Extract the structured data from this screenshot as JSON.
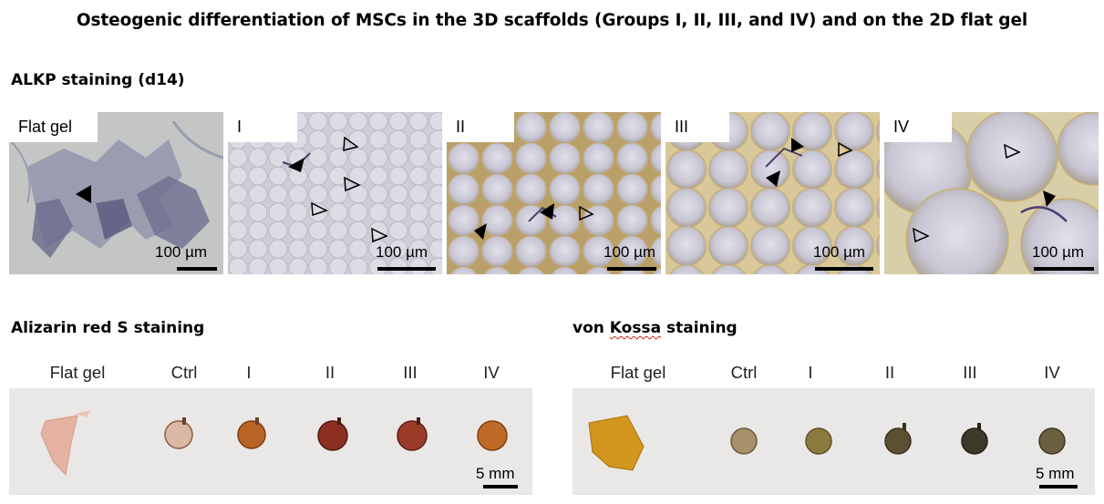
{
  "title": "Osteogenic differentiation of MSCs in the 3D scaffolds (Groups I, II, III, and IV) and on the 2D flat gel",
  "alkp": {
    "label": "ALKP staining (d14)",
    "panels": [
      {
        "tag": "Flat gel",
        "scale": "100 µm"
      },
      {
        "tag": "I",
        "scale": "100 µm"
      },
      {
        "tag": "II",
        "scale": "100 µm"
      },
      {
        "tag": "III",
        "scale": "100 µm"
      },
      {
        "tag": "IV",
        "scale": "100 µm"
      }
    ]
  },
  "alizarin": {
    "label": "Alizarin red S staining",
    "columns": [
      "Flat gel",
      "Ctrl",
      "I",
      "II",
      "III",
      "IV"
    ],
    "scale": "5 mm"
  },
  "vonkossa": {
    "label_prefix": "von ",
    "label_word": "Kossa",
    "label_suffix": " staining",
    "columns": [
      "Flat gel",
      "Ctrl",
      "I",
      "II",
      "III",
      "IV"
    ],
    "scale": "5 mm"
  }
}
